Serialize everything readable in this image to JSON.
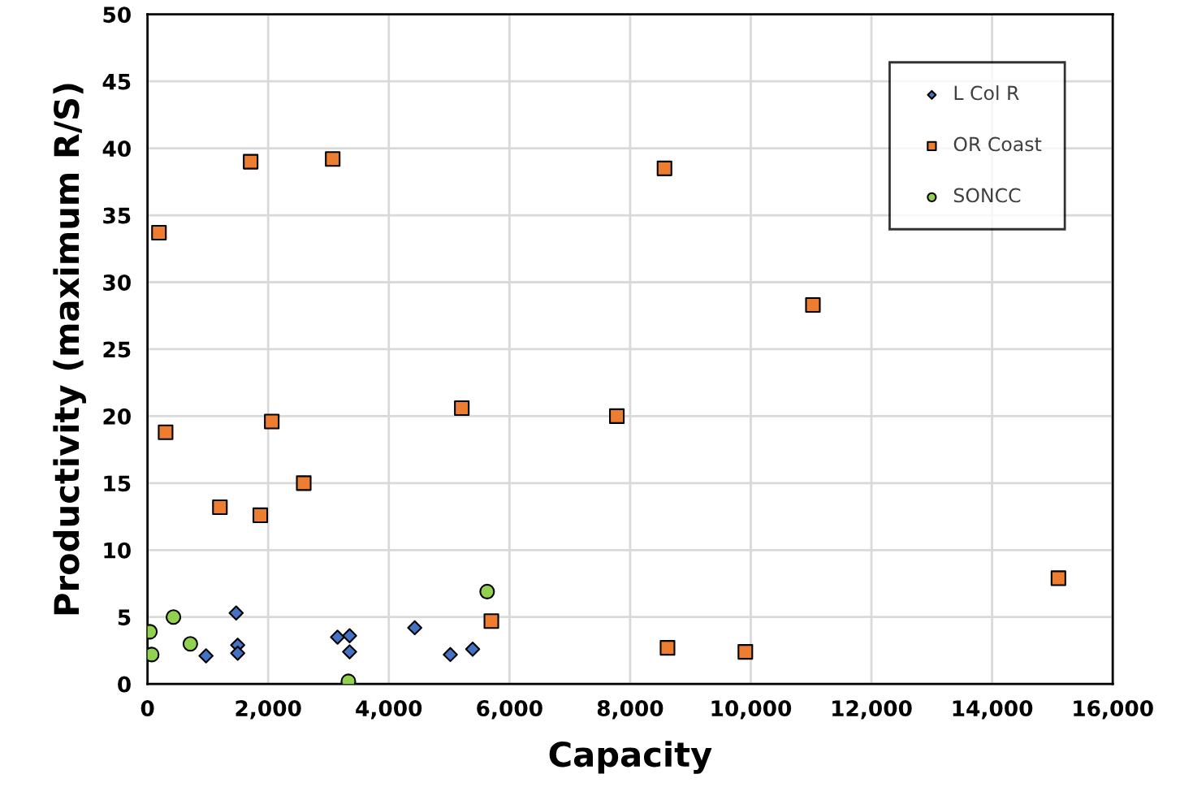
{
  "chart_data": {
    "type": "scatter",
    "xlabel": "Capacity",
    "ylabel": "Productivity (maximum R/S)",
    "xlim": [
      0,
      16000
    ],
    "xticks": [
      {
        "value": 0,
        "label": "0"
      },
      {
        "value": 2000,
        "label": "2,000"
      },
      {
        "value": 4000,
        "label": "4,000"
      },
      {
        "value": 6000,
        "label": "6,000"
      },
      {
        "value": 8000,
        "label": "8,000"
      },
      {
        "value": 10000,
        "label": "10,000"
      },
      {
        "value": 12000,
        "label": "12,000"
      },
      {
        "value": 14000,
        "label": "14,000"
      },
      {
        "value": 16000,
        "label": "16,000"
      }
    ],
    "ylim": [
      0,
      50
    ],
    "yticks": [
      0,
      5,
      10,
      15,
      20,
      25,
      30,
      35,
      40,
      45,
      50
    ],
    "grid": true,
    "legend": "top right",
    "series": [
      {
        "name": "L Col R",
        "color": "#4472c4",
        "marker": "diamond",
        "x": [
          1470,
          1495,
          1495,
          970,
          3150,
          3350,
          3350,
          4430,
          5020,
          5390
        ],
        "values": [
          5.3,
          2.9,
          2.3,
          2.1,
          3.5,
          3.6,
          2.4,
          4.2,
          2.2,
          2.6
        ]
      },
      {
        "name": "OR Coast",
        "color": "#ed7d31",
        "marker": "square",
        "x": [
          190,
          300,
          1710,
          1200,
          1870,
          2060,
          2590,
          3070,
          5210,
          5700,
          7780,
          8570,
          8620,
          9910,
          11030,
          15100
        ],
        "values": [
          33.7,
          18.8,
          39.0,
          13.2,
          12.6,
          19.6,
          15.0,
          39.2,
          20.6,
          4.7,
          20.0,
          38.5,
          2.7,
          2.4,
          28.3,
          7.9
        ]
      },
      {
        "name": "SONCC",
        "color": "#92d050",
        "marker": "circle",
        "x": [
          40,
          70,
          430,
          710,
          3330,
          5630
        ],
        "values": [
          3.9,
          2.2,
          5.0,
          3.0,
          0.2,
          6.9
        ]
      }
    ]
  }
}
